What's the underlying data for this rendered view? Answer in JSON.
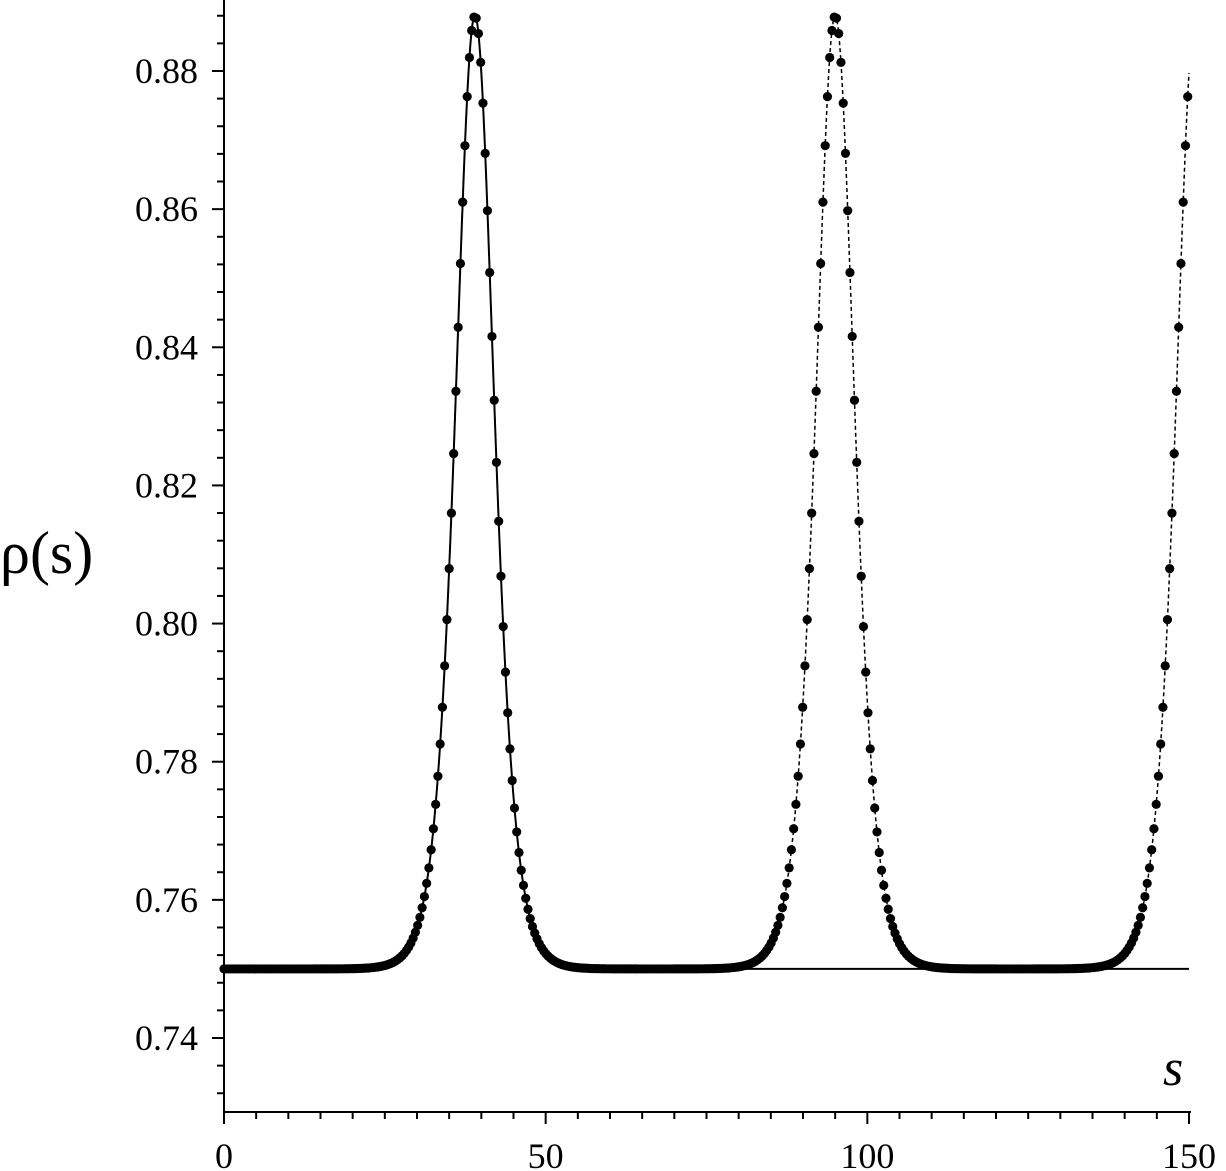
{
  "chart_data": {
    "type": "line",
    "title": "",
    "xlabel": "s",
    "ylabel": "ρ(s)",
    "xlim": [
      0,
      150
    ],
    "ylim": [
      0.7295,
      0.889
    ],
    "x_ticks": [
      0,
      50,
      100,
      150
    ],
    "x_tick_labels": [
      "0",
      "50",
      "100",
      "150"
    ],
    "x_minor_step": 5,
    "y_ticks": [
      0.74,
      0.76,
      0.78,
      0.8,
      0.82,
      0.84,
      0.86,
      0.88
    ],
    "y_tick_labels": [
      "0.74",
      "0.76",
      "0.78",
      "0.80",
      "0.82",
      "0.84",
      "0.86",
      "0.88"
    ],
    "grid": false,
    "legend": "none",
    "series": [
      {
        "style": "solid-line",
        "color": "#000000",
        "description_values": "single soliton: baseline 0.75, peak 0.888 at s=39",
        "baseline": 0.75,
        "peaks": [
          {
            "center": 39,
            "amplitude": 0.138
          }
        ],
        "x_range": [
          0,
          150
        ]
      },
      {
        "style": "dots-with-dashed-line",
        "color": "#000000",
        "baseline": 0.75,
        "peaks": [
          {
            "center": 39,
            "amplitude": 0.138
          },
          {
            "center": 95,
            "amplitude": 0.138
          },
          {
            "center": 151,
            "amplitude": 0.138
          }
        ],
        "x_range": [
          0,
          150
        ],
        "dot_step": 0.35
      }
    ],
    "peak_width": 4.0
  }
}
